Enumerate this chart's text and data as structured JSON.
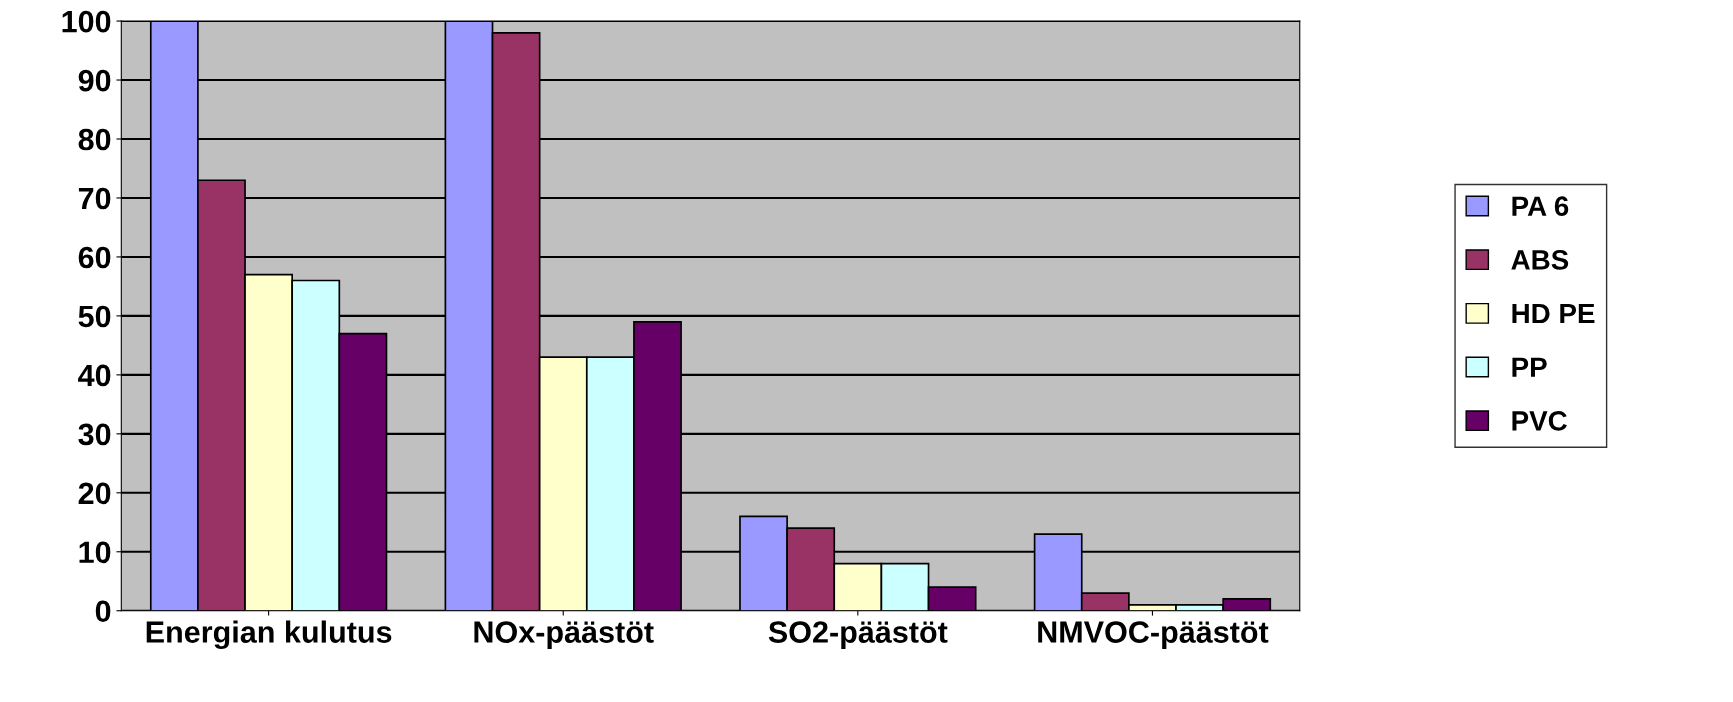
{
  "chart_data": {
    "type": "bar",
    "categories": [
      "Energian kulutus",
      "NOx-päästöt",
      "SO2-päästöt",
      "NMVOC-päästöt"
    ],
    "series": [
      {
        "name": "PA 6",
        "color": "#9999ff",
        "values": [
          100,
          100,
          16,
          13
        ]
      },
      {
        "name": "ABS",
        "color": "#993366",
        "values": [
          73,
          98,
          14,
          3
        ]
      },
      {
        "name": "HD PE",
        "color": "#ffffcc",
        "values": [
          57,
          43,
          8,
          1
        ]
      },
      {
        "name": "PP",
        "color": "#ccffff",
        "values": [
          56,
          43,
          8,
          1
        ]
      },
      {
        "name": "PVC",
        "color": "#660066",
        "values": [
          47,
          49,
          4,
          2
        ]
      }
    ],
    "ylim": [
      0,
      100
    ],
    "yticks": [
      0,
      10,
      20,
      30,
      40,
      50,
      60,
      70,
      80,
      90,
      100
    ],
    "grid": "y",
    "legend": "right"
  }
}
